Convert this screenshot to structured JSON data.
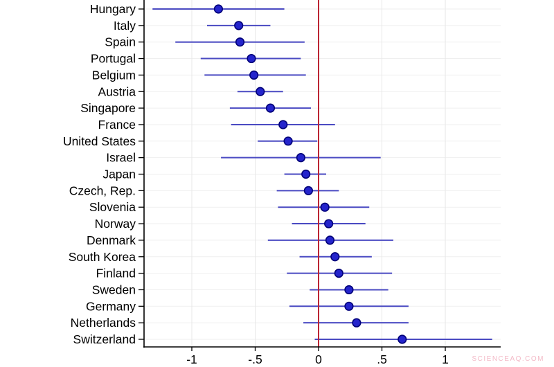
{
  "chart_data": {
    "type": "scatter",
    "subtype": "coefficient-dot-with-95ci",
    "title": "",
    "xlabel": "",
    "ylabel": "",
    "xlim": [
      -1.377,
      1.437
    ],
    "grid": true,
    "zero_reference_line": 0,
    "x_ticks": [
      {
        "value": -1.0,
        "label": "-1"
      },
      {
        "value": -0.5,
        "label": "-.5"
      },
      {
        "value": 0.0,
        "label": "0"
      },
      {
        "value": 0.5,
        "label": ".5"
      },
      {
        "value": 1.0,
        "label": "1"
      }
    ],
    "series": [
      {
        "name": "estimate-with-95ci",
        "points": [
          {
            "country": "Hungary",
            "estimate": -0.79,
            "ci_low": -1.31,
            "ci_high": -0.27
          },
          {
            "country": "Italy",
            "estimate": -0.63,
            "ci_low": -0.88,
            "ci_high": -0.38
          },
          {
            "country": "Spain",
            "estimate": -0.62,
            "ci_low": -1.13,
            "ci_high": -0.11
          },
          {
            "country": "Portugal",
            "estimate": -0.53,
            "ci_low": -0.93,
            "ci_high": -0.14
          },
          {
            "country": "Belgium",
            "estimate": -0.51,
            "ci_low": -0.9,
            "ci_high": -0.1
          },
          {
            "country": "Austria",
            "estimate": -0.46,
            "ci_low": -0.64,
            "ci_high": -0.28
          },
          {
            "country": "Singapore",
            "estimate": -0.38,
            "ci_low": -0.7,
            "ci_high": -0.06
          },
          {
            "country": "France",
            "estimate": -0.28,
            "ci_low": -0.69,
            "ci_high": 0.13
          },
          {
            "country": "United States",
            "estimate": -0.24,
            "ci_low": -0.48,
            "ci_high": -0.01
          },
          {
            "country": "Israel",
            "estimate": -0.14,
            "ci_low": -0.77,
            "ci_high": 0.49
          },
          {
            "country": "Japan",
            "estimate": -0.1,
            "ci_low": -0.27,
            "ci_high": 0.06
          },
          {
            "country": "Czech, Rep.",
            "estimate": -0.08,
            "ci_low": -0.33,
            "ci_high": 0.16
          },
          {
            "country": "Slovenia",
            "estimate": 0.05,
            "ci_low": -0.32,
            "ci_high": 0.4
          },
          {
            "country": "Norway",
            "estimate": 0.08,
            "ci_low": -0.21,
            "ci_high": 0.37
          },
          {
            "country": "Denmark",
            "estimate": 0.09,
            "ci_low": -0.4,
            "ci_high": 0.59
          },
          {
            "country": "South Korea",
            "estimate": 0.13,
            "ci_low": -0.15,
            "ci_high": 0.42
          },
          {
            "country": "Finland",
            "estimate": 0.16,
            "ci_low": -0.25,
            "ci_high": 0.58
          },
          {
            "country": "Sweden",
            "estimate": 0.24,
            "ci_low": -0.07,
            "ci_high": 0.55
          },
          {
            "country": "Germany",
            "estimate": 0.24,
            "ci_low": -0.23,
            "ci_high": 0.71
          },
          {
            "country": "Netherlands",
            "estimate": 0.3,
            "ci_low": -0.12,
            "ci_high": 0.71
          },
          {
            "country": "Switzerland",
            "estimate": 0.66,
            "ci_low": -0.03,
            "ci_high": 1.37
          }
        ]
      }
    ]
  },
  "colors": {
    "ci_line": "#4a4ac2",
    "dot_fill": "#2424cc",
    "dot_stroke": "#000078",
    "zero_line": "#bb2433",
    "grid_horizontal": "#efefef",
    "grid_vertical": "#e7e7e7",
    "axis": "#000000",
    "label_text": "#000000",
    "watermark_text": "#f3bac7",
    "background": "#ffffff"
  },
  "watermark": {
    "text": "SCIENCEAQ.COM"
  }
}
